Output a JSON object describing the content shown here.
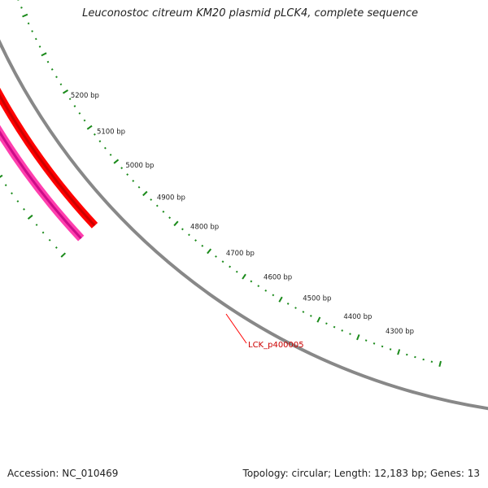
{
  "title": "Leuconostoc citreum KM20 plasmid pLCK4, complete sequence",
  "footer": {
    "accession": "Accession: NC_010469",
    "topology": "Topology: circular; Length: 12,183 bp; Genes: 13"
  },
  "tick_labels": [
    "4300 bp",
    "4400 bp",
    "4500 bp",
    "4600 bp",
    "4700 bp",
    "4800 bp",
    "4900 bp",
    "5000 bp",
    "5100 bp",
    "5200 bp"
  ],
  "feature_label": "LCK_p400005",
  "colors": {
    "backbone": "#888888",
    "feature_outer": "#ff0000",
    "feature_inner": "#cc0000",
    "orf_outer": "#ff3fae",
    "orf_inner": "#cc0c88",
    "ticks": "#1a8a1a",
    "label_line": "#ff0000",
    "label_text": "#cc0000"
  }
}
